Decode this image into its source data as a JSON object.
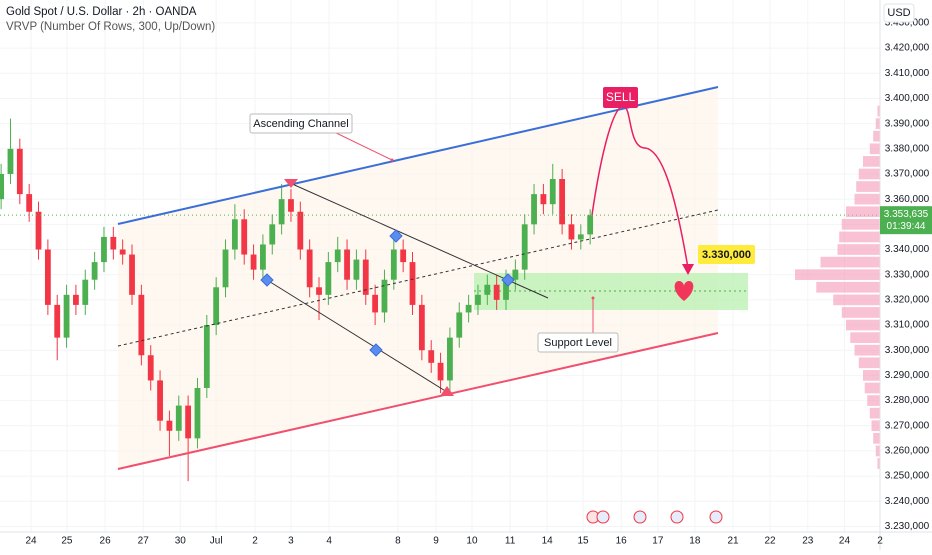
{
  "chart_data": {
    "type": "candlestick",
    "title": "Gold Spot / U.S. Dollar · 2h · OANDA",
    "subtitle": "VRVP (Number Of Rows, 300, Up/Down)",
    "currency": "USD",
    "up_color": "#4caf50",
    "down_color": "#f23645",
    "x": [
      -0.8,
      -0.55,
      -0.3,
      -0.05,
      0.2,
      0.45,
      0.7,
      0.95,
      1.2,
      1.45,
      1.7,
      1.95,
      2.2,
      2.45,
      2.7,
      2.95,
      3.2,
      3.45,
      3.7,
      3.95,
      4.2,
      4.45,
      4.7,
      4.95,
      5.2,
      5.45,
      5.7,
      5.95,
      6.2,
      6.45,
      6.7,
      6.95,
      7.2,
      7.45,
      7.7,
      7.95,
      8.2,
      8.45,
      8.7,
      8.95,
      9.2,
      9.45,
      9.7,
      9.95,
      10.2,
      10.45,
      10.7,
      10.95,
      11.2,
      11.45,
      11.7,
      11.95,
      12.2,
      12.45,
      12.7,
      12.95,
      13.2,
      13.45,
      13.7,
      13.95,
      14.2,
      14.45,
      14.7,
      14.95
    ],
    "open": [
      3360,
      3370,
      3380,
      3362,
      3355,
      3340,
      3318,
      3305,
      3322,
      3318,
      3328,
      3335,
      3345,
      3340,
      3338,
      3322,
      3298,
      3288,
      3272,
      3268,
      3278,
      3265,
      3285,
      3310,
      3325,
      3340,
      3352,
      3338,
      3332,
      3342,
      3350,
      3360,
      3355,
      3340,
      3325,
      3322,
      3335,
      3340,
      3328,
      3336,
      3322,
      3315,
      3328,
      3340,
      3335,
      3318,
      3300,
      3295,
      3288,
      3305,
      3315,
      3318,
      3322,
      3326,
      3320,
      3328,
      3332,
      3350,
      3362,
      3358,
      3368,
      3350,
      3344,
      3346
    ],
    "high": [
      3374,
      3392,
      3384,
      3366,
      3359,
      3344,
      3322,
      3326,
      3326,
      3332,
      3339,
      3349,
      3349,
      3344,
      3342,
      3326,
      3302,
      3292,
      3276,
      3282,
      3282,
      3289,
      3314,
      3329,
      3344,
      3358,
      3356,
      3342,
      3346,
      3354,
      3366,
      3364,
      3359,
      3344,
      3329,
      3339,
      3345,
      3344,
      3340,
      3340,
      3326,
      3332,
      3344,
      3344,
      3339,
      3322,
      3304,
      3299,
      3309,
      3319,
      3322,
      3326,
      3330,
      3330,
      3332,
      3336,
      3354,
      3366,
      3366,
      3374,
      3372,
      3354,
      3350,
      3356
    ],
    "low": [
      3356,
      3366,
      3358,
      3351,
      3336,
      3314,
      3296,
      3301,
      3314,
      3314,
      3324,
      3331,
      3336,
      3334,
      3318,
      3294,
      3284,
      3268,
      3258,
      3264,
      3248,
      3261,
      3281,
      3306,
      3321,
      3336,
      3334,
      3328,
      3328,
      3338,
      3346,
      3351,
      3336,
      3321,
      3312,
      3318,
      3331,
      3324,
      3324,
      3318,
      3310,
      3311,
      3324,
      3331,
      3314,
      3296,
      3291,
      3283,
      3284,
      3301,
      3311,
      3314,
      3318,
      3316,
      3316,
      3324,
      3328,
      3346,
      3354,
      3354,
      3346,
      3340,
      3340,
      3342
    ],
    "close": [
      3370,
      3380,
      3362,
      3355,
      3340,
      3318,
      3305,
      3322,
      3318,
      3328,
      3335,
      3345,
      3340,
      3338,
      3322,
      3298,
      3288,
      3272,
      3268,
      3278,
      3265,
      3285,
      3310,
      3325,
      3340,
      3352,
      3338,
      3332,
      3342,
      3350,
      3360,
      3355,
      3340,
      3325,
      3322,
      3335,
      3340,
      3328,
      3336,
      3322,
      3315,
      3328,
      3340,
      3335,
      3318,
      3300,
      3295,
      3288,
      3305,
      3315,
      3318,
      3322,
      3326,
      3320,
      3328,
      3332,
      3350,
      3362,
      3358,
      3368,
      3350,
      3344,
      3346,
      3353.635
    ],
    "last_price_label": "3.353,635",
    "countdown": "01:39:44",
    "xlim": [
      -0.83,
      22.7
    ],
    "ylim": [
      3227.8,
      3439.1
    ],
    "xticks": [
      {
        "value": 0,
        "label": "24"
      },
      {
        "value": 0.96,
        "label": "25"
      },
      {
        "value": 1.98,
        "label": "26"
      },
      {
        "value": 3.0,
        "label": "27"
      },
      {
        "value": 3.99,
        "label": "30"
      },
      {
        "value": 4.95,
        "label": "Jul"
      },
      {
        "value": 5.99,
        "label": "2"
      },
      {
        "value": 6.95,
        "label": "3"
      },
      {
        "value": 7.97,
        "label": "4"
      },
      {
        "value": 9.81,
        "label": "8"
      },
      {
        "value": 10.83,
        "label": "9"
      },
      {
        "value": 11.79,
        "label": "10"
      },
      {
        "value": 12.81,
        "label": "11"
      },
      {
        "value": 13.8,
        "label": "14"
      },
      {
        "value": 14.76,
        "label": "15"
      },
      {
        "value": 15.78,
        "label": "16"
      },
      {
        "value": 16.76,
        "label": "17"
      },
      {
        "value": 17.75,
        "label": "18"
      },
      {
        "value": 18.77,
        "label": "21"
      },
      {
        "value": 19.76,
        "label": "22"
      },
      {
        "value": 20.77,
        "label": "23"
      },
      {
        "value": 21.75,
        "label": "24"
      },
      {
        "value": 22.7,
        "label": "2"
      }
    ],
    "yticks": [
      {
        "value": 3230,
        "label": "3.230,000"
      },
      {
        "value": 3240,
        "label": "3.240,000"
      },
      {
        "value": 3250,
        "label": "3.250,000"
      },
      {
        "value": 3260,
        "label": "3.260,000"
      },
      {
        "value": 3270,
        "label": "3.270,000"
      },
      {
        "value": 3280,
        "label": "3.280,000"
      },
      {
        "value": 3290,
        "label": "3.290,000"
      },
      {
        "value": 3300,
        "label": "3.300,000"
      },
      {
        "value": 3310,
        "label": "3.310,000"
      },
      {
        "value": 3320,
        "label": "3.320,000"
      },
      {
        "value": 3330,
        "label": "3.330,000"
      },
      {
        "value": 3340,
        "label": "3.340,000"
      },
      {
        "value": 3350,
        "label": "3.350,000"
      },
      {
        "value": 3360,
        "label": "3.360,000"
      },
      {
        "value": 3370,
        "label": "3.370,000"
      },
      {
        "value": 3380,
        "label": "3.380,000"
      },
      {
        "value": 3390,
        "label": "3.390,000"
      },
      {
        "value": 3400,
        "label": "3.400,000"
      },
      {
        "value": 3410,
        "label": "3.410,000"
      },
      {
        "value": 3420,
        "label": "3.420,000"
      },
      {
        "value": 3430,
        "label": "3.430,000"
      }
    ],
    "volume_profile": {
      "color": "#f48fb1",
      "prices": [
        3255,
        3260,
        3265,
        3270,
        3275,
        3280,
        3285,
        3290,
        3295,
        3300,
        3305,
        3310,
        3315,
        3320,
        3325,
        3330,
        3335,
        3340,
        3345,
        3350,
        3355,
        3360,
        3365,
        3370,
        3375,
        3380,
        3385,
        3390,
        3395
      ],
      "volumes": [
        3,
        5,
        8,
        10,
        12,
        15,
        18,
        20,
        25,
        30,
        35,
        40,
        45,
        55,
        75,
        100,
        70,
        50,
        48,
        45,
        40,
        30,
        28,
        25,
        20,
        12,
        8,
        5,
        3
      ]
    },
    "annotations": {
      "channel": "Ascending Channel",
      "support": "Support Level",
      "sell": "SELL",
      "target": "3.330,000"
    }
  }
}
